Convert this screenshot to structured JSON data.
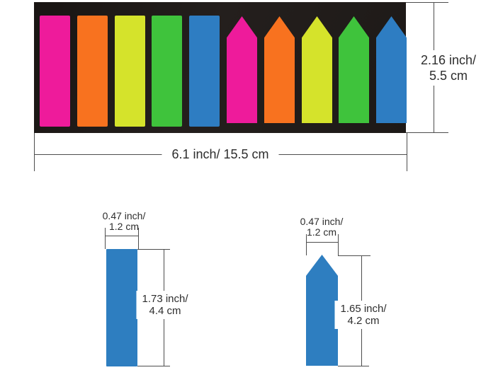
{
  "figure": {
    "panel": {
      "background": "#201b19",
      "tabs": [
        {
          "name": "pink-rect",
          "shape": "rect",
          "color": "#ee1b9b"
        },
        {
          "name": "orange-rect",
          "shape": "rect",
          "color": "#f8721f"
        },
        {
          "name": "yellow-rect",
          "shape": "rect",
          "color": "#d5e32b"
        },
        {
          "name": "green-rect",
          "shape": "rect",
          "color": "#3fc33c"
        },
        {
          "name": "blue-rect",
          "shape": "rect",
          "color": "#2e7dc2"
        },
        {
          "name": "pink-arrow",
          "shape": "arrow",
          "color": "#ee1b9b"
        },
        {
          "name": "orange-arrow",
          "shape": "arrow",
          "color": "#f8721f"
        },
        {
          "name": "yellow-arrow",
          "shape": "arrow",
          "color": "#d5e32b"
        },
        {
          "name": "green-arrow",
          "shape": "arrow",
          "color": "#3fc33c"
        },
        {
          "name": "blue-arrow",
          "shape": "arrow",
          "color": "#2e7dc2"
        }
      ]
    },
    "samples": {
      "color": "#2e7ec0"
    },
    "line_color": "#4d4d4d",
    "text_color": "#2d2d2d",
    "annotations": {
      "panel_height": {
        "line1": "2.16 inch/",
        "line2": "5.5 cm"
      },
      "panel_width": {
        "label": "6.1 inch/ 15.5 cm"
      },
      "rect_sample": {
        "width_line1": "0.47 inch/",
        "width_line2": "1.2 cm",
        "height_line1": "1.73 inch/",
        "height_line2": "4.4 cm"
      },
      "arrow_sample": {
        "width_line1": "0.47 inch/",
        "width_line2": "1.2 cm",
        "height_line1": "1.65 inch/",
        "height_line2": "4.2 cm"
      }
    }
  }
}
